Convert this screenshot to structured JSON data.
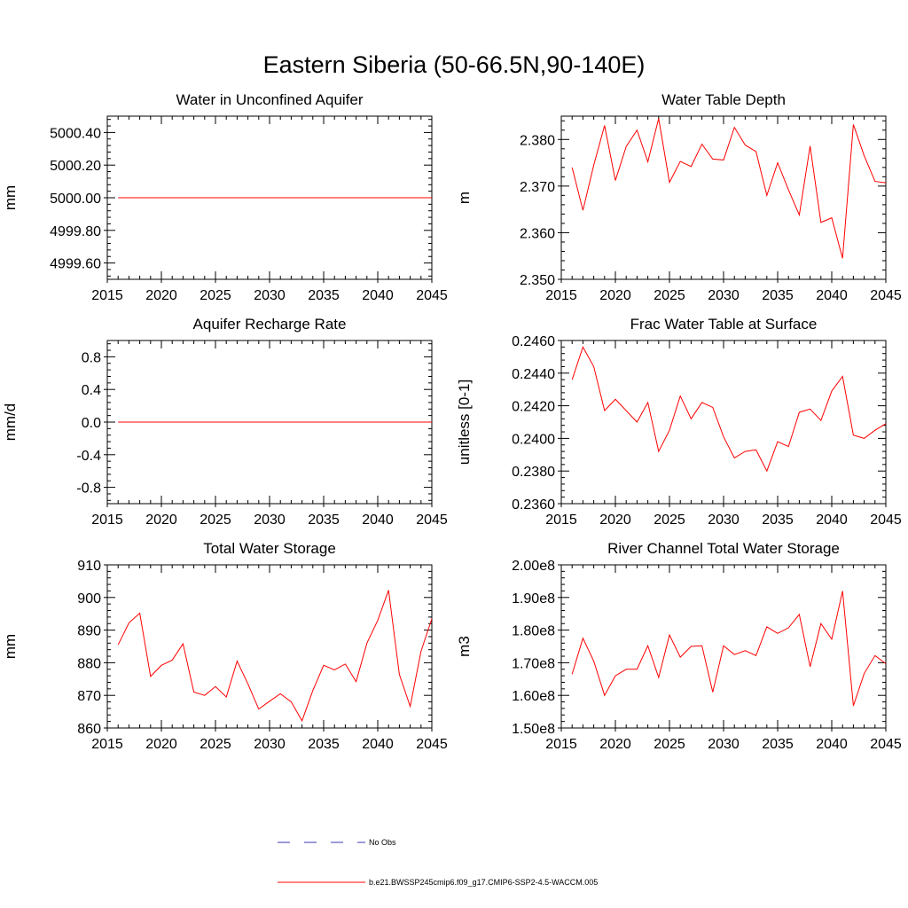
{
  "title": "Eastern Siberia (50-66.5N,90-140E)",
  "legend": [
    {
      "label": "No Obs",
      "style": "dashed",
      "color": "#3a3ab0"
    },
    {
      "label": "b.e21.BWSSP245cmip6.f09_g17.CMIP6-SSP2-4.5-WACCM.005",
      "style": "solid",
      "color": "#ff0000"
    }
  ],
  "chart_data": [
    {
      "type": "line",
      "title": "Water in Unconfined Aquifer",
      "ylabel": "mm",
      "xlim": [
        2015,
        2045
      ],
      "xticks": [
        2015,
        2020,
        2025,
        2030,
        2035,
        2040,
        2045
      ],
      "ylim": [
        4999.5,
        5000.5
      ],
      "yticks": [
        4999.6,
        4999.8,
        5000.0,
        5000.2,
        5000.4
      ],
      "ytick_labels": [
        "4999.60",
        "4999.80",
        "5000.00",
        "5000.20",
        "5000.40"
      ],
      "x": [
        2016,
        2045
      ],
      "y": [
        5000.0,
        5000.0
      ]
    },
    {
      "type": "line",
      "title": "Water Table Depth",
      "ylabel": "m",
      "xlim": [
        2015,
        2045
      ],
      "xticks": [
        2015,
        2020,
        2025,
        2030,
        2035,
        2040,
        2045
      ],
      "ylim": [
        2.35,
        2.385
      ],
      "yticks": [
        2.35,
        2.36,
        2.37,
        2.38
      ],
      "ytick_labels": [
        "2.350",
        "2.360",
        "2.370",
        "2.380"
      ],
      "x": [
        2016,
        2017,
        2018,
        2019,
        2020,
        2021,
        2022,
        2023,
        2024,
        2025,
        2026,
        2027,
        2028,
        2029,
        2030,
        2031,
        2032,
        2033,
        2034,
        2035,
        2036,
        2037,
        2038,
        2039,
        2040,
        2041,
        2042,
        2043,
        2044,
        2045
      ],
      "y": [
        2.374,
        2.3648,
        2.3745,
        2.383,
        2.3712,
        2.3785,
        2.382,
        2.3752,
        2.3845,
        2.3708,
        2.3753,
        2.3742,
        2.379,
        2.3758,
        2.3756,
        2.3826,
        2.3788,
        2.3774,
        2.368,
        2.375,
        2.3692,
        2.3638,
        2.3786,
        2.3622,
        2.3632,
        2.3545,
        2.3832,
        2.3765,
        2.371,
        2.3707
      ]
    },
    {
      "type": "line",
      "title": "Aquifer Recharge Rate",
      "ylabel": "mm/d",
      "xlim": [
        2015,
        2045
      ],
      "xticks": [
        2015,
        2020,
        2025,
        2030,
        2035,
        2040,
        2045
      ],
      "ylim": [
        -1.0,
        1.0
      ],
      "yticks": [
        -0.8,
        -0.4,
        0.0,
        0.4,
        0.8
      ],
      "ytick_labels": [
        "-0.8",
        "-0.4",
        "0.0",
        "0.4",
        "0.8"
      ],
      "x": [
        2016,
        2045
      ],
      "y": [
        0.0,
        0.0
      ]
    },
    {
      "type": "line",
      "title": "Frac Water Table at Surface",
      "ylabel": "unitless [0-1]",
      "xlim": [
        2015,
        2045
      ],
      "xticks": [
        2015,
        2020,
        2025,
        2030,
        2035,
        2040,
        2045
      ],
      "ylim": [
        0.236,
        0.246
      ],
      "yticks": [
        0.236,
        0.238,
        0.24,
        0.242,
        0.244,
        0.246
      ],
      "ytick_labels": [
        "0.2360",
        "0.2380",
        "0.2400",
        "0.2420",
        "0.2440",
        "0.2460"
      ],
      "x": [
        2016,
        2017,
        2018,
        2019,
        2020,
        2021,
        2022,
        2023,
        2024,
        2025,
        2026,
        2027,
        2028,
        2029,
        2030,
        2031,
        2032,
        2033,
        2034,
        2035,
        2036,
        2037,
        2038,
        2039,
        2040,
        2041,
        2042,
        2043,
        2044,
        2045
      ],
      "y": [
        0.2436,
        0.2456,
        0.2444,
        0.2417,
        0.2424,
        0.2417,
        0.241,
        0.2422,
        0.2392,
        0.2405,
        0.2426,
        0.2412,
        0.2422,
        0.2419,
        0.2401,
        0.2388,
        0.2392,
        0.2393,
        0.238,
        0.2398,
        0.2395,
        0.2416,
        0.2418,
        0.2411,
        0.2429,
        0.2438,
        0.2402,
        0.24,
        0.2405,
        0.2409
      ]
    },
    {
      "type": "line",
      "title": "Total Water Storage",
      "ylabel": "mm",
      "xlim": [
        2015,
        2045
      ],
      "xticks": [
        2015,
        2020,
        2025,
        2030,
        2035,
        2040,
        2045
      ],
      "ylim": [
        860,
        910
      ],
      "yticks": [
        860,
        870,
        880,
        890,
        900,
        910
      ],
      "ytick_labels": [
        "860",
        "870",
        "880",
        "890",
        "900",
        "910"
      ],
      "x": [
        2016,
        2017,
        2018,
        2019,
        2020,
        2021,
        2022,
        2023,
        2024,
        2025,
        2026,
        2027,
        2028,
        2029,
        2030,
        2031,
        2032,
        2033,
        2034,
        2035,
        2036,
        2037,
        2038,
        2039,
        2040,
        2041,
        2042,
        2043,
        2044,
        2045
      ],
      "y": [
        885.5,
        892.2,
        895.2,
        875.8,
        879.2,
        880.8,
        885.8,
        871.0,
        870.0,
        872.7,
        869.5,
        880.5,
        873.5,
        865.8,
        868.2,
        870.5,
        868.0,
        862.2,
        871.5,
        879.2,
        877.8,
        879.6,
        874.2,
        886.0,
        893.0,
        902.2,
        876.4,
        866.6,
        883.5,
        893.5
      ]
    },
    {
      "type": "line",
      "title": "River Channel Total Water Storage",
      "ylabel": "m3",
      "xlim": [
        2015,
        2045
      ],
      "xticks": [
        2015,
        2020,
        2025,
        2030,
        2035,
        2040,
        2045
      ],
      "ylim": [
        150000000,
        200000000
      ],
      "yticks": [
        150000000,
        160000000,
        170000000,
        180000000,
        190000000,
        200000000
      ],
      "ytick_labels": [
        "1.50e8",
        "1.60e8",
        "1.70e8",
        "1.80e8",
        "1.90e8",
        "2.00e8"
      ],
      "x": [
        2016,
        2017,
        2018,
        2019,
        2020,
        2021,
        2022,
        2023,
        2024,
        2025,
        2026,
        2027,
        2028,
        2029,
        2030,
        2031,
        2032,
        2033,
        2034,
        2035,
        2036,
        2037,
        2038,
        2039,
        2040,
        2041,
        2042,
        2043,
        2044,
        2045
      ],
      "y": [
        166500000,
        177500000,
        170500000,
        160000000,
        166000000,
        168000000,
        168000000,
        175200000,
        165500000,
        178500000,
        171700000,
        175000000,
        175200000,
        161000000,
        175200000,
        172500000,
        173700000,
        172200000,
        181000000,
        179000000,
        180700000,
        184800000,
        168800000,
        182000000,
        177200000,
        192000000,
        156800000,
        166700000,
        172200000,
        169700000
      ]
    }
  ]
}
